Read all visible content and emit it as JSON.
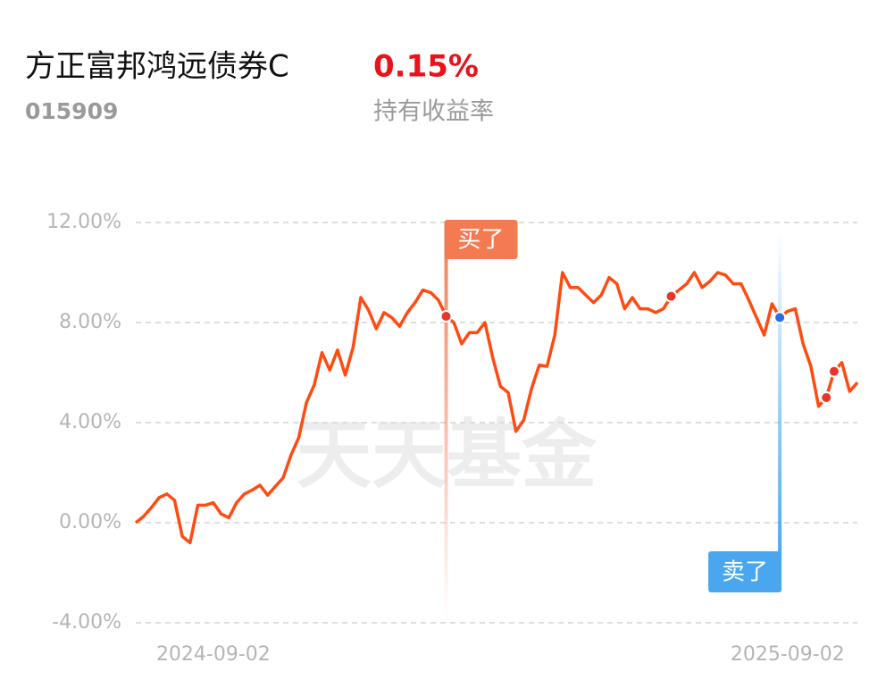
{
  "header": {
    "title": "方正富邦鸿远债券C",
    "code": "015909",
    "return": "0.15%",
    "return_label": "持有收益率"
  },
  "chart_data": {
    "type": "line",
    "watermark": "天天基金",
    "categories": [
      null,
      null,
      null,
      null,
      null,
      null,
      null,
      null,
      null,
      null,
      "2024-09-02",
      null,
      null,
      null,
      null,
      null,
      null,
      null,
      null,
      null,
      null,
      null,
      null,
      null,
      null,
      null,
      null,
      null,
      null,
      null,
      null,
      null,
      null,
      null,
      null,
      null,
      null,
      null,
      null,
      null,
      null,
      null,
      null,
      null,
      null,
      null,
      null,
      null,
      null,
      null,
      null,
      null,
      null,
      null,
      null,
      null,
      null,
      null,
      null,
      null,
      null,
      null,
      null,
      null,
      null,
      null,
      null,
      null,
      null,
      null,
      null,
      null,
      null,
      null,
      null,
      null,
      null,
      null,
      null,
      null,
      null,
      null,
      null,
      null,
      "2025-09-02",
      null,
      null,
      null,
      null,
      null,
      null,
      null,
      null,
      null
    ],
    "series": [
      {
        "color": "#ff4b12",
        "values": [
          0,
          0.25,
          0.6,
          1.0,
          1.15,
          0.9,
          -0.55,
          -0.8,
          0.7,
          0.7,
          0.8,
          0.35,
          0.2,
          0.8,
          1.15,
          1.3,
          1.5,
          1.1,
          1.45,
          1.8,
          2.7,
          3.4,
          4.8,
          5.5,
          6.8,
          6.1,
          6.9,
          5.9,
          7.0,
          9.0,
          8.5,
          7.75,
          8.4,
          8.2,
          7.85,
          8.4,
          8.8,
          9.3,
          9.2,
          8.9,
          8.25,
          8.0,
          7.15,
          7.6,
          7.6,
          8.0,
          6.6,
          5.45,
          5.2,
          3.65,
          4.1,
          5.35,
          6.3,
          6.25,
          7.5,
          10.0,
          9.4,
          9.4,
          9.1,
          8.8,
          9.1,
          9.8,
          9.55,
          8.55,
          9.0,
          8.55,
          8.55,
          8.4,
          8.55,
          9.05,
          9.3,
          9.55,
          10.0,
          9.4,
          9.65,
          10.0,
          9.9,
          9.55,
          9.55,
          8.9,
          8.2,
          7.5,
          8.75,
          8.2,
          8.45,
          8.55,
          7.15,
          6.25,
          4.65,
          5.0,
          6.05,
          6.4,
          5.25,
          5.6
        ]
      }
    ],
    "buy": {
      "label": "买了",
      "color": "#e8352a",
      "tag_color": "#f47a52",
      "values": [
        null,
        null,
        null,
        null,
        null,
        null,
        null,
        null,
        null,
        null,
        null,
        null,
        null,
        null,
        null,
        null,
        null,
        null,
        null,
        null,
        null,
        null,
        null,
        null,
        null,
        null,
        null,
        null,
        null,
        null,
        null,
        null,
        null,
        null,
        null,
        null,
        null,
        null,
        null,
        null,
        8.25,
        null,
        null,
        null,
        null,
        null,
        null,
        null,
        null,
        null,
        null,
        null,
        null,
        null,
        null,
        null,
        null,
        null,
        null,
        null,
        null,
        null,
        null,
        null,
        null,
        null,
        null,
        null,
        null,
        9.05,
        null,
        null,
        null,
        null,
        null,
        null,
        null,
        null,
        null,
        null,
        null,
        null,
        null,
        null,
        null,
        null,
        null,
        null,
        null,
        5.0,
        6.05,
        null,
        null,
        null
      ]
    },
    "sell": {
      "label": "卖了",
      "color": "#2a6de0",
      "tag_color": "#4aa6ee",
      "values": [
        null,
        null,
        null,
        null,
        null,
        null,
        null,
        null,
        null,
        null,
        null,
        null,
        null,
        null,
        null,
        null,
        null,
        null,
        null,
        null,
        null,
        null,
        null,
        null,
        null,
        null,
        null,
        null,
        null,
        null,
        null,
        null,
        null,
        null,
        null,
        null,
        null,
        null,
        null,
        null,
        null,
        null,
        null,
        null,
        null,
        null,
        null,
        null,
        null,
        null,
        null,
        null,
        null,
        null,
        null,
        null,
        null,
        null,
        null,
        null,
        null,
        null,
        null,
        null,
        null,
        null,
        null,
        null,
        null,
        null,
        null,
        null,
        null,
        null,
        null,
        null,
        null,
        null,
        null,
        null,
        null,
        null,
        null,
        8.2,
        null,
        null,
        null,
        null,
        null,
        null,
        null,
        null,
        null,
        null
      ]
    },
    "ylim": [
      -4,
      12
    ],
    "yticks": [
      {
        "value": -4,
        "label": "-4.00%"
      },
      {
        "value": 0,
        "label": "0.00%"
      },
      {
        "value": 4,
        "label": "4.00%"
      },
      {
        "value": 8,
        "label": "8.00%"
      },
      {
        "value": 12,
        "label": "12.00%"
      }
    ],
    "grid": true
  }
}
